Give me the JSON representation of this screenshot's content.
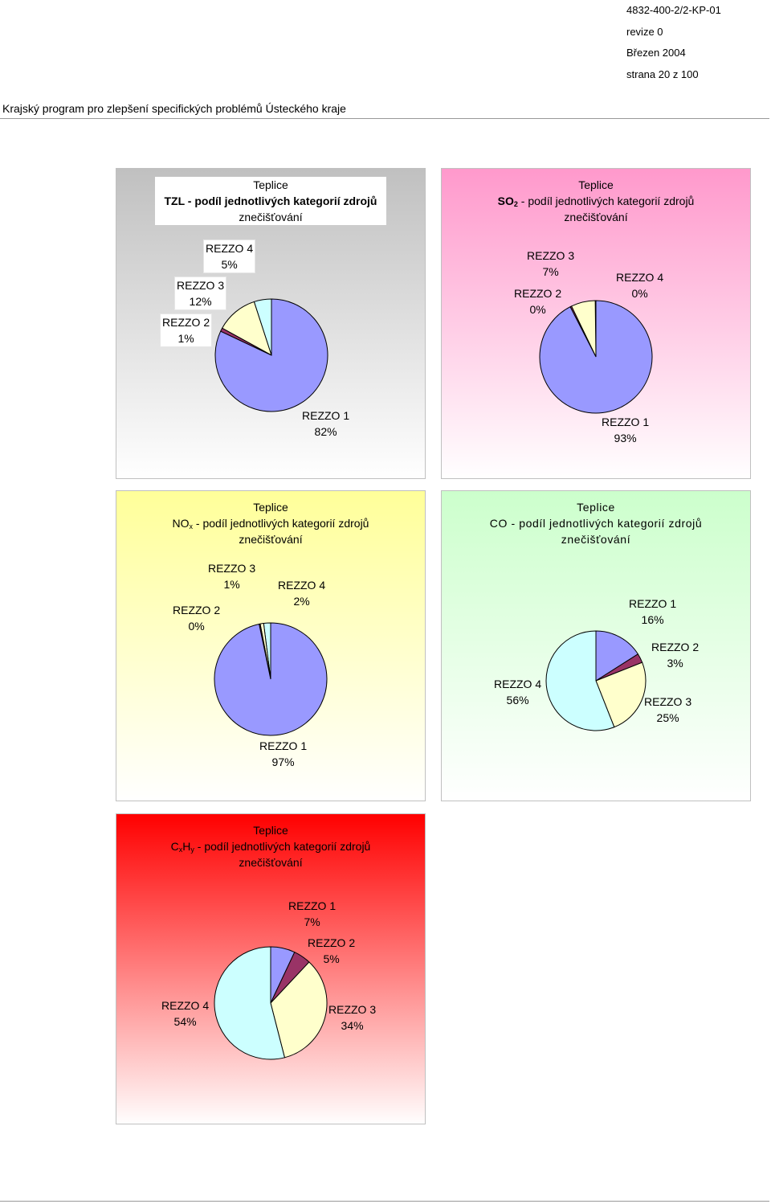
{
  "header": {
    "doc_code": "4832-400-2/2-KP-01",
    "revision": "revize 0",
    "date": "Březen 2004",
    "page": "strana 20 z 100",
    "doc_title": "Krajský program pro zlepšení specifických problémů Ústeckého kraje"
  },
  "colors": {
    "rezzo1_blue": "#9999ff",
    "rezzo2_maroon": "#993366",
    "rezzo3_cream": "#ffffcc",
    "rezzo4_cyan": "#ccffff",
    "tzl_bg": "#c0c0c0",
    "so2_bg": "#ff99cc",
    "nox_bg": "#ffff99",
    "co_bg": "#ccffcc",
    "cxhy_bg": "#ff0000"
  },
  "chart_data": [
    {
      "id": "tzl",
      "type": "pie",
      "title_line1": "Teplice",
      "title_formula": "TZL",
      "title_sub": "",
      "title_rest": " - podíl jednotlivých kategorií zdrojů",
      "title_line3": "znečišťování",
      "slices": [
        {
          "label": "REZZO 1",
          "percent_label": "82%",
          "value": 82
        },
        {
          "label": "REZZO 2",
          "percent_label": "1%",
          "value": 1
        },
        {
          "label": "REZZO 3",
          "percent_label": "12%",
          "value": 12
        },
        {
          "label": "REZZO 4",
          "percent_label": "5%",
          "value": 5
        }
      ]
    },
    {
      "id": "so2",
      "type": "pie",
      "title_line1": "Teplice",
      "title_formula": "SO",
      "title_sub": "2",
      "title_rest": " - podíl jednotlivých kategorií zdrojů",
      "title_line3": "znečišťování",
      "slices": [
        {
          "label": "REZZO 1",
          "percent_label": "93%",
          "value": 93
        },
        {
          "label": "REZZO 2",
          "percent_label": "0%",
          "value": 0.4
        },
        {
          "label": "REZZO 3",
          "percent_label": "7%",
          "value": 7
        },
        {
          "label": "REZZO 4",
          "percent_label": "0%",
          "value": 0.2
        }
      ]
    },
    {
      "id": "nox",
      "type": "pie",
      "title_line1": "Teplice",
      "title_formula": "NO",
      "title_sub": "x",
      "title_rest": " - podíl jednotlivých kategorií zdrojů",
      "title_line3": "znečišťování",
      "slices": [
        {
          "label": "REZZO 1",
          "percent_label": "97%",
          "value": 97
        },
        {
          "label": "REZZO 2",
          "percent_label": "0%",
          "value": 0.3
        },
        {
          "label": "REZZO 3",
          "percent_label": "1%",
          "value": 1
        },
        {
          "label": "REZZO 4",
          "percent_label": "2%",
          "value": 2
        }
      ]
    },
    {
      "id": "co",
      "type": "pie",
      "title_line1": "Teplice",
      "title_formula": "CO",
      "title_sub": "",
      "title_rest": " - podíl jednotlivých kategorií zdrojů",
      "title_line3": "znečišťování",
      "slices": [
        {
          "label": "REZZO 1",
          "percent_label": "16%",
          "value": 16
        },
        {
          "label": "REZZO 2",
          "percent_label": "3%",
          "value": 3
        },
        {
          "label": "REZZO 3",
          "percent_label": "25%",
          "value": 25
        },
        {
          "label": "REZZO 4",
          "percent_label": "56%",
          "value": 56
        }
      ]
    },
    {
      "id": "cxhy",
      "type": "pie",
      "title_line1": "Teplice",
      "title_formula": "CxHy",
      "title_sub": "",
      "title_rest": " - podíl jednotlivých kategorií zdrojů",
      "title_line3": "znečišťování",
      "slices": [
        {
          "label": "REZZO 1",
          "percent_label": "7%",
          "value": 7
        },
        {
          "label": "REZZO 2",
          "percent_label": "5%",
          "value": 5
        },
        {
          "label": "REZZO 3",
          "percent_label": "34%",
          "value": 34
        },
        {
          "label": "REZZO 4",
          "percent_label": "54%",
          "value": 54
        }
      ]
    }
  ]
}
